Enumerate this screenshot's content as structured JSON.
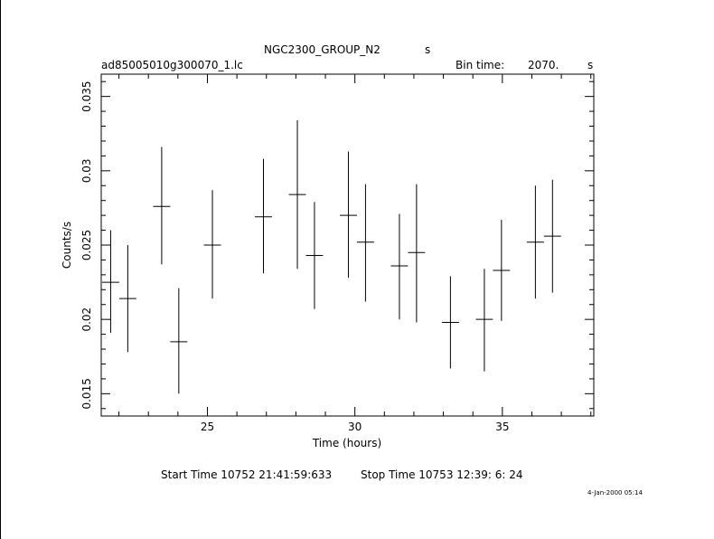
{
  "header": {
    "title": "NGC2300_GROUP_N2",
    "title_unit": "s",
    "file_name": "ad85005010g300070_1.lc",
    "bin_time_label": "Bin time:",
    "bin_time_value": "2070.",
    "bin_time_unit": "s"
  },
  "footer": {
    "start_time": "Start Time 10752 21:41:59:633",
    "stop_time": "Stop Time 10753 12:39: 6: 24",
    "date_stamp": "4-Jan-2000 05:14"
  },
  "chart_data": {
    "type": "scatter",
    "xlabel": "Time (hours)",
    "ylabel": "Counts/s",
    "xlim": [
      21.4,
      38.1
    ],
    "ylim": [
      0.0135,
      0.0365
    ],
    "xticks": [
      25,
      30,
      35
    ],
    "xtick_labels": [
      "25",
      "30",
      "35"
    ],
    "yticks": [
      0.015,
      0.02,
      0.025,
      0.03,
      0.035
    ],
    "ytick_labels": [
      "0.015",
      "0.02",
      "0.025",
      "0.03",
      "0.035"
    ],
    "grid": false,
    "points": [
      {
        "x": 21.72,
        "y": 0.0225,
        "xerr": 0.29,
        "ylo": 0.0191,
        "yhi": 0.026
      },
      {
        "x": 22.3,
        "y": 0.0214,
        "xerr": 0.29,
        "ylo": 0.0178,
        "yhi": 0.025
      },
      {
        "x": 23.45,
        "y": 0.0276,
        "xerr": 0.29,
        "ylo": 0.0237,
        "yhi": 0.0316
      },
      {
        "x": 24.03,
        "y": 0.0185,
        "xerr": 0.29,
        "ylo": 0.015,
        "yhi": 0.0221
      },
      {
        "x": 25.17,
        "y": 0.025,
        "xerr": 0.29,
        "ylo": 0.0214,
        "yhi": 0.0287
      },
      {
        "x": 26.9,
        "y": 0.0269,
        "xerr": 0.29,
        "ylo": 0.0231,
        "yhi": 0.0308
      },
      {
        "x": 28.05,
        "y": 0.0284,
        "xerr": 0.29,
        "ylo": 0.0234,
        "yhi": 0.0334
      },
      {
        "x": 28.63,
        "y": 0.0243,
        "xerr": 0.29,
        "ylo": 0.0207,
        "yhi": 0.0279
      },
      {
        "x": 29.78,
        "y": 0.027,
        "xerr": 0.29,
        "ylo": 0.0228,
        "yhi": 0.0313
      },
      {
        "x": 30.36,
        "y": 0.0252,
        "xerr": 0.29,
        "ylo": 0.0212,
        "yhi": 0.0291
      },
      {
        "x": 31.51,
        "y": 0.0236,
        "xerr": 0.29,
        "ylo": 0.02,
        "yhi": 0.0271
      },
      {
        "x": 32.09,
        "y": 0.0245,
        "xerr": 0.29,
        "ylo": 0.0198,
        "yhi": 0.0291
      },
      {
        "x": 33.24,
        "y": 0.0198,
        "xerr": 0.29,
        "ylo": 0.0167,
        "yhi": 0.0229
      },
      {
        "x": 34.39,
        "y": 0.02,
        "xerr": 0.29,
        "ylo": 0.0165,
        "yhi": 0.0234
      },
      {
        "x": 34.97,
        "y": 0.0233,
        "xerr": 0.29,
        "ylo": 0.0199,
        "yhi": 0.0267
      },
      {
        "x": 36.12,
        "y": 0.0252,
        "xerr": 0.29,
        "ylo": 0.0214,
        "yhi": 0.029
      },
      {
        "x": 36.7,
        "y": 0.0256,
        "xerr": 0.29,
        "ylo": 0.0218,
        "yhi": 0.0294
      }
    ]
  }
}
